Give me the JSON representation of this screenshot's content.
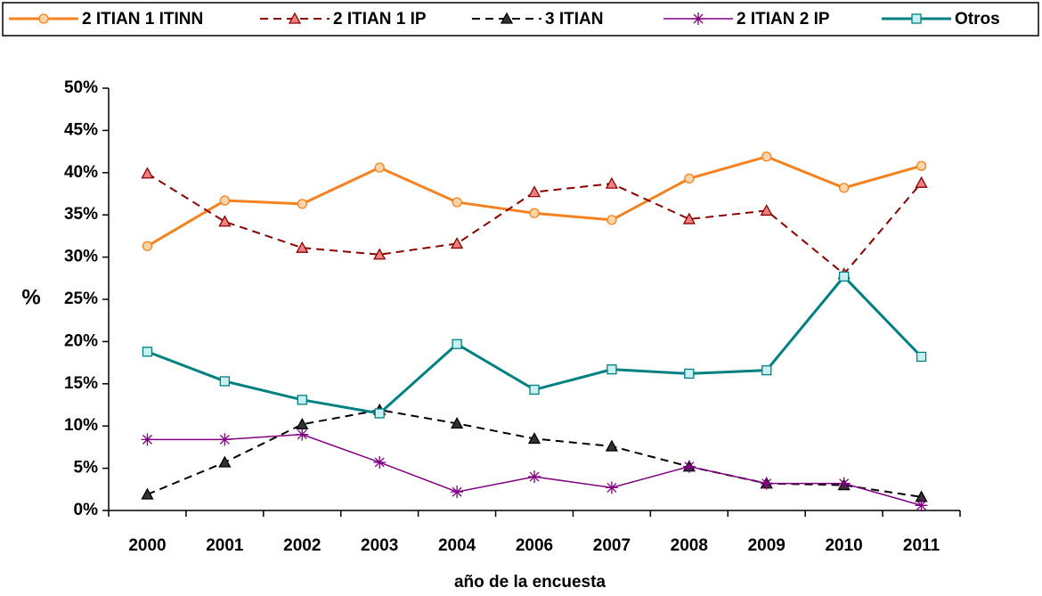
{
  "chart_data": {
    "type": "line",
    "x_label": "año de la encuesta",
    "y_label": "%",
    "categories": [
      "2000",
      "2001",
      "2002",
      "2003",
      "2004",
      "2006",
      "2007",
      "2008",
      "2009",
      "2010",
      "2011"
    ],
    "series": [
      {
        "name": "2 ITIAN 1 ITINN",
        "color": "#f58220",
        "marker": "circle",
        "dash": "solid",
        "values": [
          31.3,
          36.7,
          36.3,
          40.6,
          36.5,
          35.2,
          34.4,
          39.3,
          41.9,
          38.2,
          40.8
        ]
      },
      {
        "name": "2 ITIAN 1 IP",
        "color": "#8b0000",
        "marker": "triangle-open",
        "dash": "dashed",
        "values": [
          39.9,
          34.2,
          31.1,
          30.3,
          31.6,
          37.7,
          38.7,
          34.5,
          35.5,
          28.0,
          38.8
        ]
      },
      {
        "name": "3 ITIAN",
        "color": "#000000",
        "marker": "triangle",
        "dash": "dashed",
        "values": [
          1.9,
          5.7,
          10.2,
          11.9,
          10.3,
          8.5,
          7.6,
          5.2,
          3.2,
          3.0,
          1.6
        ]
      },
      {
        "name": "2 ITIAN 2 IP",
        "color": "#800080",
        "marker": "star",
        "dash": "solid-thin",
        "values": [
          8.4,
          8.4,
          9.0,
          5.7,
          2.2,
          4.0,
          2.7,
          5.2,
          3.2,
          3.2,
          0.6
        ]
      },
      {
        "name": "Otros",
        "color": "#008080",
        "marker": "square",
        "dash": "solid",
        "values": [
          18.8,
          15.3,
          13.1,
          11.5,
          19.7,
          14.3,
          16.7,
          16.2,
          16.6,
          27.7,
          18.2
        ]
      }
    ],
    "ylim": [
      0,
      50
    ],
    "yticks": [
      {
        "value": 0,
        "label": "0%"
      },
      {
        "value": 5,
        "label": "5%"
      },
      {
        "value": 10,
        "label": "10%"
      },
      {
        "value": 15,
        "label": "15%"
      },
      {
        "value": 20,
        "label": "20%"
      },
      {
        "value": 25,
        "label": "25%"
      },
      {
        "value": 30,
        "label": "30%"
      },
      {
        "value": 35,
        "label": "35%"
      },
      {
        "value": 40,
        "label": "40%"
      },
      {
        "value": 45,
        "label": "45%"
      },
      {
        "value": 50,
        "label": "50%"
      }
    ],
    "grid": false,
    "legend": "top"
  }
}
